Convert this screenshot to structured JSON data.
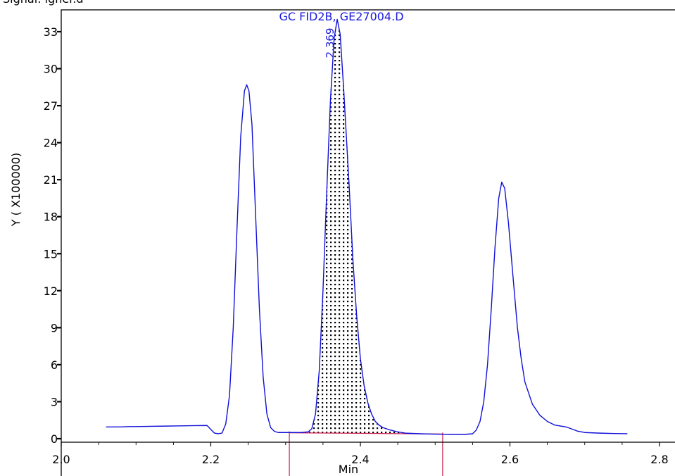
{
  "header": {
    "clipped_text": "Signal: igner.d"
  },
  "colors": {
    "trace": "#1010d8",
    "integration": "#cc2050",
    "axis": "#000000",
    "title": "#1a1adf"
  },
  "chart_data": {
    "type": "line",
    "title": "GC FID2B, GE27004.D",
    "xlabel": "Min",
    "ylabel": "Y ( X100000)",
    "xlim": [
      2.0,
      2.8
    ],
    "ylim": [
      0,
      34.5
    ],
    "x_ticks": [
      "2.0",
      "2.2",
      "2.4",
      "2.6",
      "2.8"
    ],
    "y_ticks": [
      "0",
      "3",
      "6",
      "9",
      "12",
      "15",
      "18",
      "21",
      "24",
      "27",
      "30",
      "33"
    ],
    "grid": false,
    "series": [
      {
        "points": [
          [
            2.06,
            0.95
          ],
          [
            2.08,
            0.95
          ],
          [
            2.09,
            0.98
          ],
          [
            2.1,
            0.98
          ],
          [
            2.12,
            1.0
          ],
          [
            2.14,
            1.02
          ],
          [
            2.16,
            1.04
          ],
          [
            2.18,
            1.06
          ],
          [
            2.195,
            1.07
          ],
          [
            2.2,
            0.75
          ],
          [
            2.205,
            0.45
          ],
          [
            2.21,
            0.4
          ],
          [
            2.215,
            0.45
          ],
          [
            2.22,
            1.2
          ],
          [
            2.225,
            3.5
          ],
          [
            2.23,
            9.0
          ],
          [
            2.235,
            17.0
          ],
          [
            2.24,
            24.5
          ],
          [
            2.245,
            28.2
          ],
          [
            2.248,
            28.7
          ],
          [
            2.251,
            28.2
          ],
          [
            2.255,
            25.5
          ],
          [
            2.26,
            18.0
          ],
          [
            2.265,
            10.5
          ],
          [
            2.27,
            5.0
          ],
          [
            2.275,
            2.0
          ],
          [
            2.28,
            0.9
          ],
          [
            2.285,
            0.6
          ],
          [
            2.29,
            0.5
          ],
          [
            2.3,
            0.5
          ],
          [
            2.31,
            0.5
          ],
          [
            2.32,
            0.5
          ],
          [
            2.33,
            0.55
          ],
          [
            2.335,
            0.8
          ],
          [
            2.34,
            2.0
          ],
          [
            2.345,
            5.5
          ],
          [
            2.35,
            12.0
          ],
          [
            2.355,
            20.0
          ],
          [
            2.36,
            27.5
          ],
          [
            2.365,
            32.5
          ],
          [
            2.369,
            34.0
          ],
          [
            2.373,
            32.8
          ],
          [
            2.378,
            28.0
          ],
          [
            2.385,
            20.5
          ],
          [
            2.39,
            14.5
          ],
          [
            2.395,
            10.0
          ],
          [
            2.4,
            6.5
          ],
          [
            2.405,
            4.3
          ],
          [
            2.41,
            2.9
          ],
          [
            2.415,
            2.0
          ],
          [
            2.42,
            1.4
          ],
          [
            2.425,
            1.1
          ],
          [
            2.43,
            0.9
          ],
          [
            2.44,
            0.7
          ],
          [
            2.45,
            0.55
          ],
          [
            2.46,
            0.45
          ],
          [
            2.48,
            0.4
          ],
          [
            2.5,
            0.37
          ],
          [
            2.52,
            0.35
          ],
          [
            2.54,
            0.35
          ],
          [
            2.55,
            0.4
          ],
          [
            2.555,
            0.7
          ],
          [
            2.56,
            1.4
          ],
          [
            2.565,
            3.0
          ],
          [
            2.57,
            6.0
          ],
          [
            2.575,
            10.5
          ],
          [
            2.58,
            15.5
          ],
          [
            2.585,
            19.5
          ],
          [
            2.589,
            20.8
          ],
          [
            2.593,
            20.3
          ],
          [
            2.598,
            17.5
          ],
          [
            2.605,
            12.5
          ],
          [
            2.61,
            9.0
          ],
          [
            2.615,
            6.5
          ],
          [
            2.62,
            4.6
          ],
          [
            2.63,
            2.8
          ],
          [
            2.64,
            1.9
          ],
          [
            2.65,
            1.4
          ],
          [
            2.66,
            1.1
          ],
          [
            2.67,
            1.0
          ],
          [
            2.675,
            0.95
          ],
          [
            2.68,
            0.85
          ],
          [
            2.69,
            0.62
          ],
          [
            2.7,
            0.5
          ],
          [
            2.72,
            0.45
          ],
          [
            2.74,
            0.42
          ],
          [
            2.757,
            0.4
          ]
        ]
      }
    ],
    "peak": {
      "label": "2.369",
      "x": 2.369,
      "y": 34.0,
      "area_x": [
        2.33,
        2.48
      ]
    },
    "baseline": {
      "x": [
        2.305,
        2.51
      ],
      "y": [
        0.48,
        0.38
      ],
      "markers": [
        2.305,
        2.51
      ]
    }
  }
}
